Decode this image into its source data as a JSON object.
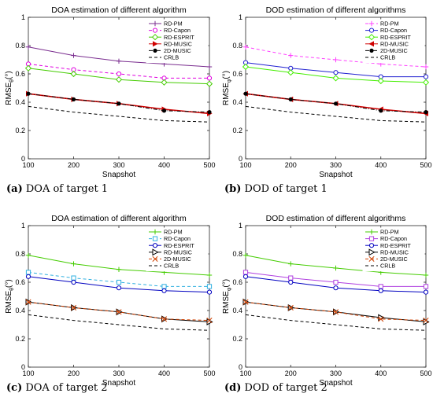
{
  "chart_data": [
    {
      "type": "line",
      "title": "DOA estimation of different algorithm",
      "xlabel": "Snapshot",
      "ylabel": "RMSE",
      "ylabel_sub": "θ",
      "ylabel_unit": "(°)",
      "xlim": [
        100,
        500
      ],
      "ylim": [
        0,
        1
      ],
      "x": [
        100,
        200,
        300,
        400,
        500
      ],
      "xticks": [
        "100",
        "200",
        "300",
        "400",
        "500"
      ],
      "yticks": [
        "0",
        "0.2",
        "0.4",
        "0.6",
        "0.8",
        "1"
      ],
      "grid": false,
      "legend": "top-right",
      "caption_label": "(a)",
      "caption_text": "DOA of target 1",
      "series": [
        {
          "name": "RD-PM",
          "values": [
            0.79,
            0.73,
            0.69,
            0.67,
            0.65
          ],
          "color": "#7a2d8f",
          "dash": "solid",
          "marker": "plus"
        },
        {
          "name": "RD-Capon",
          "values": [
            0.67,
            0.63,
            0.6,
            0.57,
            0.57
          ],
          "color": "#e000e0",
          "dash": "dashed",
          "marker": "circle-open"
        },
        {
          "name": "RD-ESPRIT",
          "values": [
            0.64,
            0.6,
            0.56,
            0.54,
            0.53
          ],
          "color": "#44cc00",
          "dash": "solid",
          "marker": "diamond-open"
        },
        {
          "name": "RD-MUSIC",
          "values": [
            0.46,
            0.42,
            0.39,
            0.35,
            0.32
          ],
          "color": "#d00000",
          "dash": "solid",
          "marker": "triangle-right"
        },
        {
          "name": "2D-MUSIC",
          "values": [
            0.46,
            0.42,
            0.39,
            0.34,
            0.33
          ],
          "color": "#000000",
          "dash": "dashdot",
          "marker": "dot"
        },
        {
          "name": "CRLB",
          "values": [
            0.37,
            0.33,
            0.3,
            0.27,
            0.26
          ],
          "color": "#000000",
          "dash": "dashed",
          "marker": "none"
        }
      ]
    },
    {
      "type": "line",
      "title": "DOD estimation of different algorithms",
      "xlabel": "Snapshot",
      "ylabel": "RMSE",
      "ylabel_sub": "φ",
      "ylabel_unit": "(°)",
      "xlim": [
        100,
        500
      ],
      "ylim": [
        0,
        1
      ],
      "x": [
        100,
        200,
        300,
        400,
        500
      ],
      "xticks": [
        "100",
        "200",
        "300",
        "400",
        "500"
      ],
      "yticks": [
        "0",
        "0.2",
        "0.4",
        "0.6",
        "0.8",
        "1"
      ],
      "grid": false,
      "legend": "top-right",
      "caption_label": "(b)",
      "caption_text": "DOD of target 1",
      "series": [
        {
          "name": "RD-PM",
          "values": [
            0.79,
            0.73,
            0.7,
            0.67,
            0.65
          ],
          "color": "#ff40ff",
          "dash": "dashed",
          "marker": "plus"
        },
        {
          "name": "RD-Capon",
          "values": [
            0.68,
            0.64,
            0.61,
            0.58,
            0.58
          ],
          "color": "#2020d0",
          "dash": "solid",
          "marker": "circle-open"
        },
        {
          "name": "RD-ESPRIT",
          "values": [
            0.65,
            0.61,
            0.57,
            0.55,
            0.54
          ],
          "color": "#44ee00",
          "dash": "solid",
          "marker": "diamond-open"
        },
        {
          "name": "RD-MUSIC",
          "values": [
            0.46,
            0.42,
            0.39,
            0.35,
            0.32
          ],
          "color": "#d00000",
          "dash": "solid",
          "marker": "triangle-left"
        },
        {
          "name": "2D-MUSIC",
          "values": [
            0.46,
            0.42,
            0.39,
            0.34,
            0.33
          ],
          "color": "#000000",
          "dash": "dashdot",
          "marker": "dot"
        },
        {
          "name": "CRLB",
          "values": [
            0.37,
            0.33,
            0.3,
            0.27,
            0.26
          ],
          "color": "#000000",
          "dash": "dashed",
          "marker": "none"
        }
      ]
    },
    {
      "type": "line",
      "title": "DOA estimation of different algorithm",
      "xlabel": "Snapshot",
      "ylabel": "RMSE",
      "ylabel_sub": "θ",
      "ylabel_unit": "(°)",
      "xlim": [
        100,
        500
      ],
      "ylim": [
        0,
        1
      ],
      "x": [
        100,
        200,
        300,
        400,
        500
      ],
      "xticks": [
        "100",
        "200",
        "300",
        "400",
        "500"
      ],
      "yticks": [
        "0",
        "0.2",
        "0.4",
        "0.6",
        "0.8",
        "1"
      ],
      "grid": false,
      "legend": "top-right",
      "caption_label": "(c)",
      "caption_text": "DOA of target 2",
      "series": [
        {
          "name": "RD-PM",
          "values": [
            0.79,
            0.73,
            0.69,
            0.67,
            0.65
          ],
          "color": "#44cc00",
          "dash": "solid",
          "marker": "plus"
        },
        {
          "name": "RD-Capon",
          "values": [
            0.67,
            0.63,
            0.6,
            0.57,
            0.57
          ],
          "color": "#30b0e0",
          "dash": "dashed",
          "marker": "square-open"
        },
        {
          "name": "RD-ESPRIT",
          "values": [
            0.64,
            0.6,
            0.56,
            0.54,
            0.53
          ],
          "color": "#0000c0",
          "dash": "solid",
          "marker": "circle-open"
        },
        {
          "name": "RD-MUSIC",
          "values": [
            0.46,
            0.42,
            0.39,
            0.34,
            0.32
          ],
          "color": "#000000",
          "dash": "solid",
          "marker": "triangle-right-open"
        },
        {
          "name": "2D-MUSIC",
          "values": [
            0.46,
            0.42,
            0.39,
            0.34,
            0.33
          ],
          "color": "#d04000",
          "dash": "dashed",
          "marker": "x"
        },
        {
          "name": "CRLB",
          "values": [
            0.37,
            0.33,
            0.3,
            0.27,
            0.26
          ],
          "color": "#000000",
          "dash": "dashed",
          "marker": "none"
        }
      ]
    },
    {
      "type": "line",
      "title": "DOD estimation of different algorithms",
      "xlabel": "Snapshot",
      "ylabel": "RMSE",
      "ylabel_sub": "φ",
      "ylabel_unit": "(°)",
      "xlim": [
        100,
        500
      ],
      "ylim": [
        0,
        1
      ],
      "x": [
        100,
        200,
        300,
        400,
        500
      ],
      "xticks": [
        "100",
        "200",
        "300",
        "400",
        "500"
      ],
      "yticks": [
        "0",
        "0.2",
        "0.4",
        "0.6",
        "0.8",
        "1"
      ],
      "grid": false,
      "legend": "top-right",
      "caption_label": "(d)",
      "caption_text": "DOD of target 2",
      "series": [
        {
          "name": "RD-PM",
          "values": [
            0.79,
            0.73,
            0.7,
            0.67,
            0.65
          ],
          "color": "#44cc00",
          "dash": "solid",
          "marker": "plus"
        },
        {
          "name": "RD-Capon",
          "values": [
            0.67,
            0.63,
            0.6,
            0.57,
            0.57
          ],
          "color": "#b040e0",
          "dash": "solid",
          "marker": "square-open"
        },
        {
          "name": "RD-ESPRIT",
          "values": [
            0.64,
            0.6,
            0.56,
            0.54,
            0.53
          ],
          "color": "#0000c0",
          "dash": "solid",
          "marker": "circle-open"
        },
        {
          "name": "RD-MUSIC",
          "values": [
            0.46,
            0.42,
            0.39,
            0.35,
            0.32
          ],
          "color": "#000000",
          "dash": "solid",
          "marker": "triangle-right-open"
        },
        {
          "name": "2D-MUSIC",
          "values": [
            0.46,
            0.42,
            0.39,
            0.34,
            0.33
          ],
          "color": "#d04000",
          "dash": "dashed",
          "marker": "x"
        },
        {
          "name": "CRLB",
          "values": [
            0.37,
            0.33,
            0.3,
            0.27,
            0.26
          ],
          "color": "#000000",
          "dash": "dashed",
          "marker": "none"
        }
      ]
    }
  ]
}
